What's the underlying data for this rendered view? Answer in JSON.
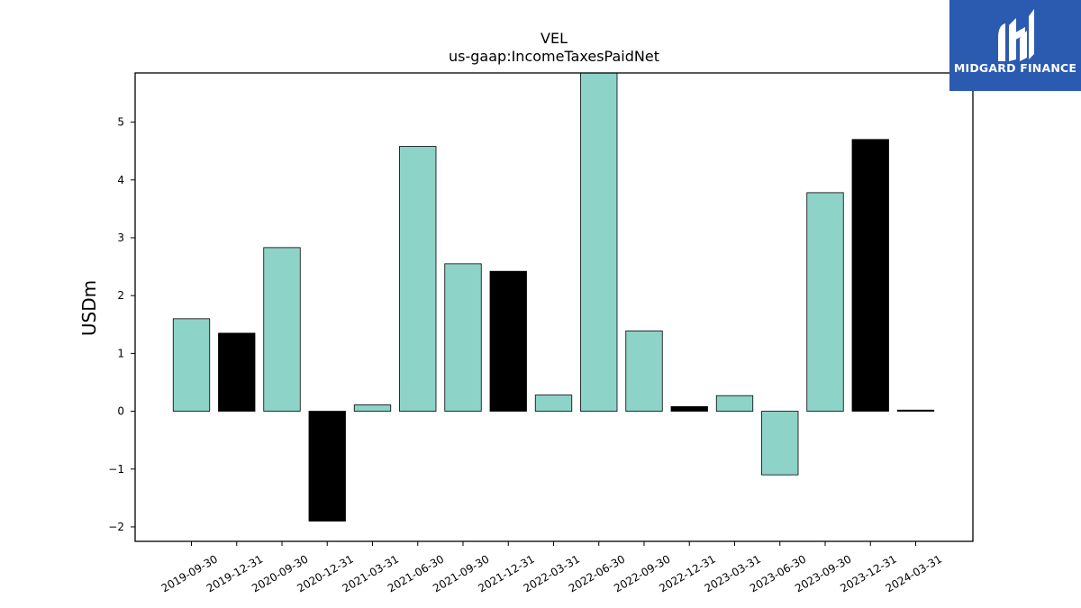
{
  "logo": {
    "text": "MIDGARD FINANCE"
  },
  "colors": {
    "teal": "#8dd3c7",
    "black": "#000000",
    "logo_bg": "#2b5ab1"
  },
  "chart_data": {
    "type": "bar",
    "title": "VEL",
    "subtitle": "us-gaap:IncomeTaxesPaidNet",
    "xlabel": "",
    "ylabel": "USDm",
    "ylim": [
      -2.25,
      5.85
    ],
    "yticks": [
      -2,
      -1,
      0,
      1,
      2,
      3,
      4,
      5
    ],
    "ytick_labels": [
      "−2",
      "−1",
      "0",
      "1",
      "2",
      "3",
      "4",
      "5"
    ],
    "categories": [
      "2019-09-30",
      "2019-12-31",
      "2020-09-30",
      "2020-12-31",
      "2021-03-31",
      "2021-06-30",
      "2021-09-30",
      "2021-12-31",
      "2022-03-31",
      "2022-06-30",
      "2022-09-30",
      "2022-12-31",
      "2023-03-31",
      "2023-06-30",
      "2023-09-30",
      "2023-12-31",
      "2024-03-31"
    ],
    "values": [
      1.6,
      1.35,
      2.83,
      -1.9,
      0.11,
      4.58,
      2.55,
      2.42,
      0.28,
      5.9,
      1.39,
      0.08,
      0.27,
      -1.1,
      3.78,
      4.7,
      0.02
    ],
    "bar_colors": [
      "#8dd3c7",
      "#000000",
      "#8dd3c7",
      "#000000",
      "#8dd3c7",
      "#8dd3c7",
      "#8dd3c7",
      "#000000",
      "#8dd3c7",
      "#8dd3c7",
      "#8dd3c7",
      "#000000",
      "#8dd3c7",
      "#8dd3c7",
      "#8dd3c7",
      "#000000",
      "#000000"
    ],
    "grid": false,
    "legend": "none"
  }
}
